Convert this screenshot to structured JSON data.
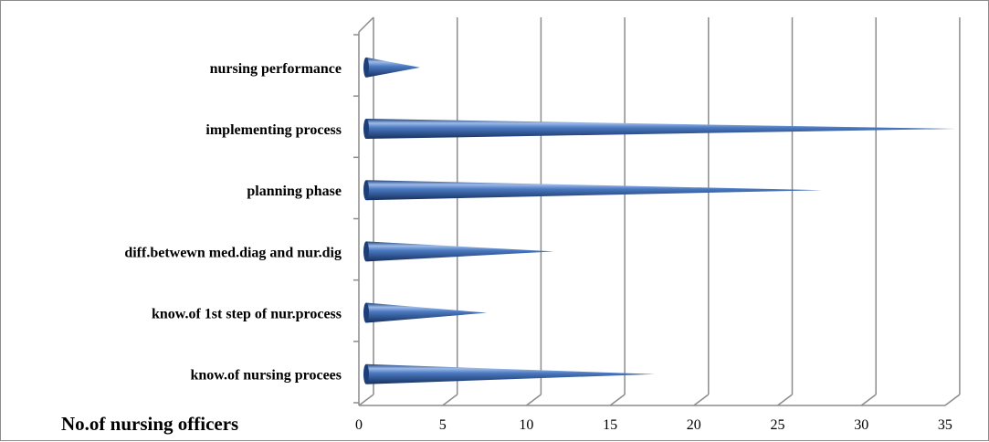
{
  "chart_data": {
    "type": "bar",
    "orientation": "horizontal",
    "style": "3d-cone",
    "categories": [
      "know.of nursing procees",
      "know.of 1st step of nur.process",
      "diff.betwewn med.diag and nur.dig",
      "planning phase",
      "implementing process",
      "nursing performance"
    ],
    "values": [
      17,
      7,
      11,
      27,
      35,
      3
    ],
    "xlabel": "No.of nursing officers",
    "xlim": [
      0,
      35
    ],
    "xticks": [
      0,
      5,
      10,
      15,
      20,
      25,
      30,
      35
    ],
    "grid": true,
    "legend": "none",
    "colors": {
      "bar": "#4a78c0",
      "bar_dark": "#1d3f78",
      "bar_light": "#aac4ec",
      "grid": "#8c8c8c"
    }
  }
}
